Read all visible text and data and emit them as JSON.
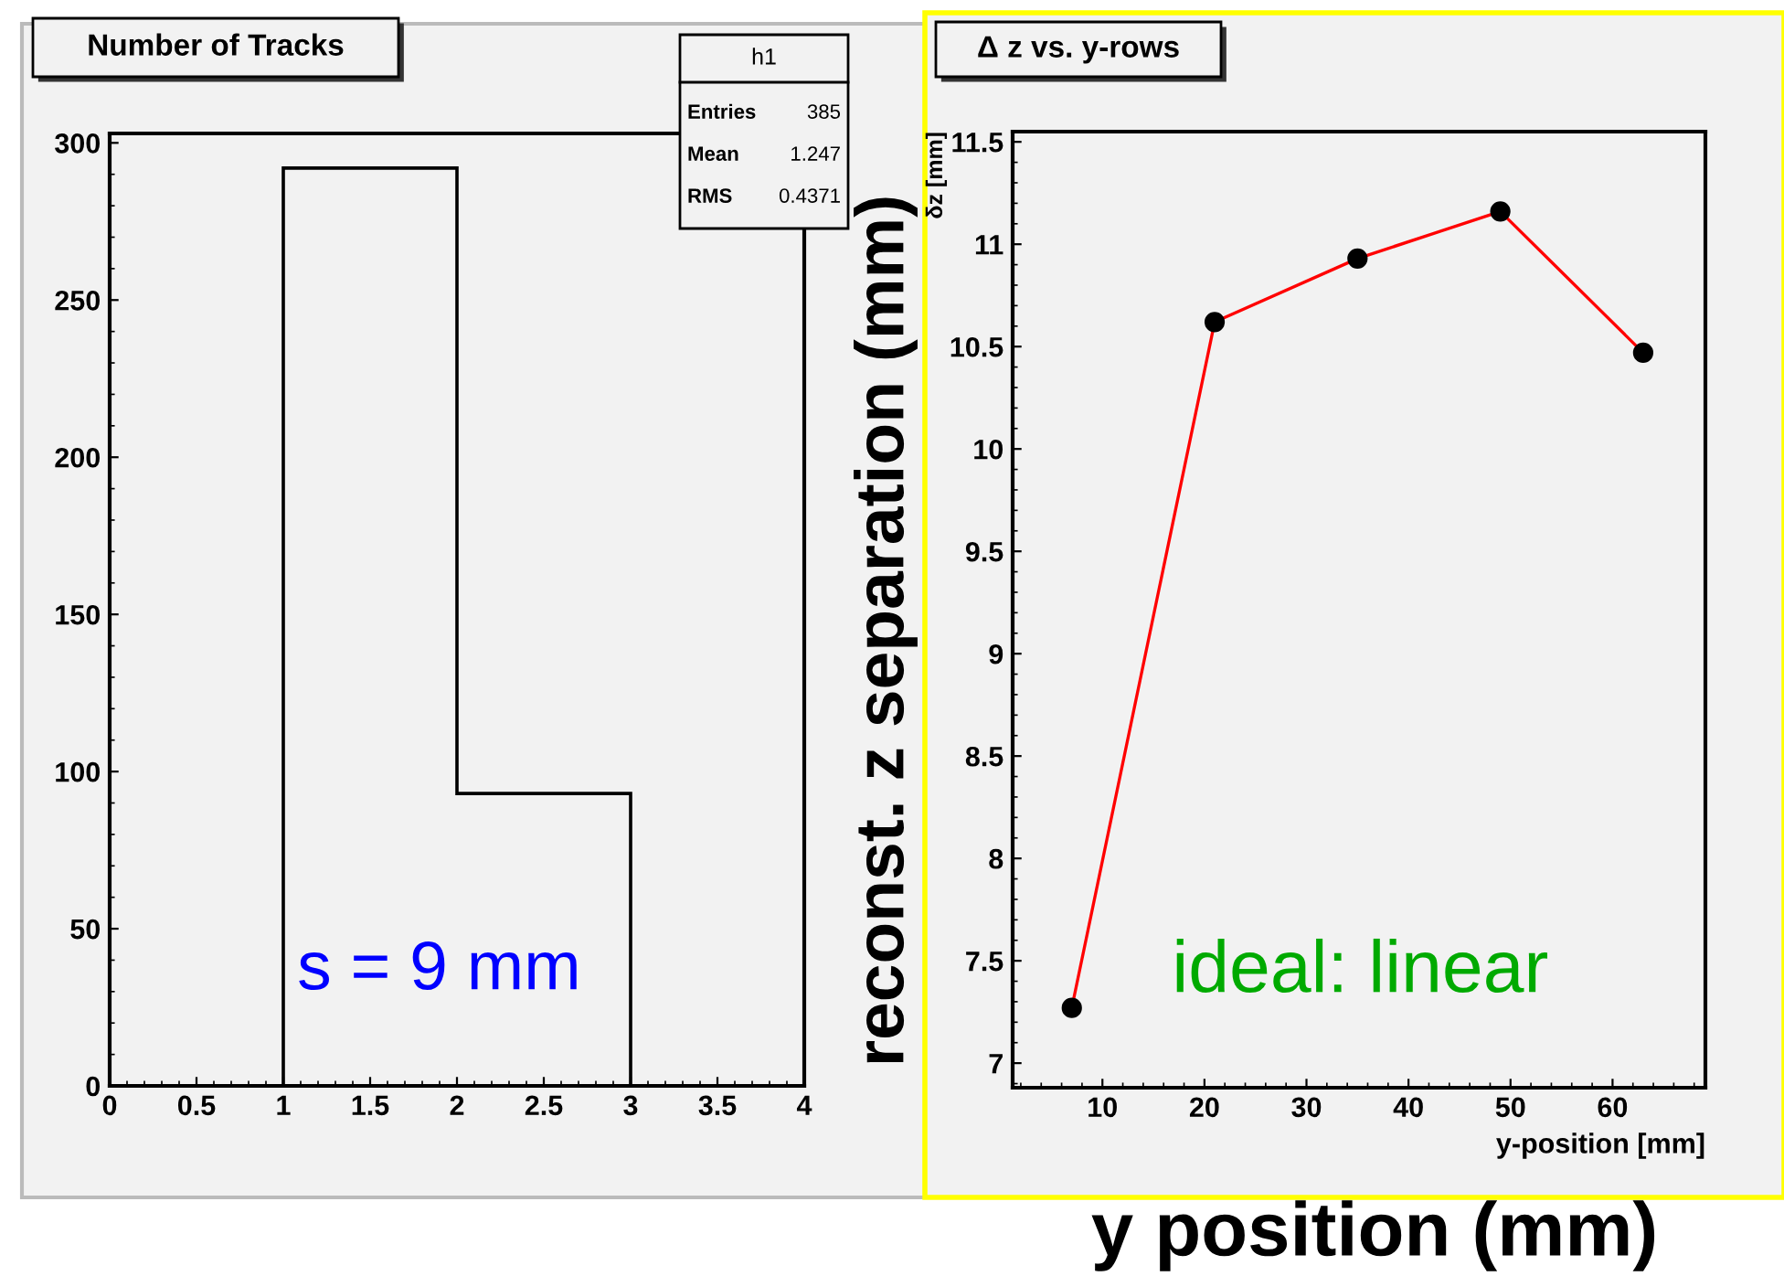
{
  "chart_data": [
    {
      "type": "histogram",
      "title": "Number of Tracks",
      "bins": [
        0,
        1,
        2,
        3,
        4
      ],
      "values": [
        0,
        292,
        93,
        0
      ],
      "color": "#000000",
      "xlim": [
        0,
        4
      ],
      "ylim": [
        0,
        303
      ],
      "xticks": [
        0,
        0.5,
        1,
        1.5,
        2,
        2.5,
        3,
        3.5,
        4
      ],
      "yticks": [
        0,
        50,
        100,
        150,
        200,
        250,
        300
      ],
      "grid": false,
      "legend": false,
      "annotations": [
        "h1",
        "Entries",
        "385",
        "Mean",
        "1.247",
        "RMS",
        "0.4371",
        "s = 9 mm"
      ]
    },
    {
      "type": "line",
      "title": "Δ z vs. y-rows",
      "xlabel": "y-position [mm]",
      "ylabel": "δz [mm]",
      "x": [
        7,
        21,
        35,
        49,
        63
      ],
      "series": [
        {
          "color": "#ff0000",
          "values": [
            7.27,
            10.62,
            10.93,
            11.16,
            10.47
          ]
        }
      ],
      "xlim": [
        1.2,
        69.1
      ],
      "ylim": [
        6.88,
        11.55
      ],
      "xticks": [
        10,
        20,
        30,
        40,
        50,
        60
      ],
      "yticks": [
        7,
        7.5,
        8,
        8.5,
        9,
        9.5,
        10,
        10.5,
        11,
        11.5
      ],
      "grid": false,
      "legend": false,
      "marker": "circle",
      "line_style": "solid",
      "annotations": [
        "ideal: linear",
        "reconst. z separation (mm)",
        "y position (mm)"
      ]
    }
  ]
}
